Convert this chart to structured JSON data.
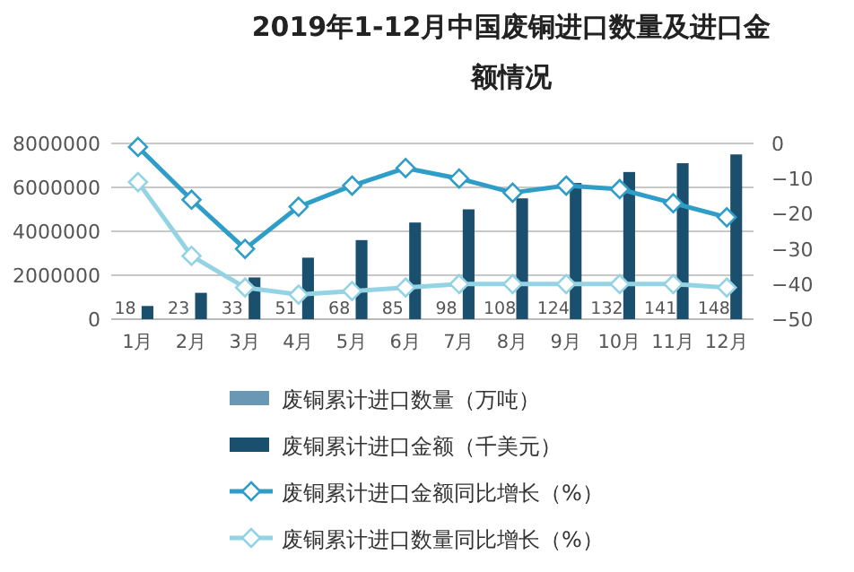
{
  "chart_data": {
    "type": "bar",
    "title": "2019年1-12月中国废铜进口数量及进口金额情况",
    "categories": [
      "1月",
      "2月",
      "3月",
      "4月",
      "5月",
      "6月",
      "7月",
      "8月",
      "9月",
      "10月",
      "11月",
      "12月"
    ],
    "series": [
      {
        "name": "废铜累计进口数量（万吨）",
        "color": "#6a97b3",
        "values": [
          18,
          23,
          33,
          51,
          68,
          85,
          98,
          108,
          124,
          132,
          141,
          148
        ],
        "data_labels": true
      },
      {
        "name": "废铜累计进口金额（千美元）",
        "color": "#1b4f6e",
        "values": [
          600000,
          1200000,
          1900000,
          2800000,
          3600000,
          4400000,
          5000000,
          5500000,
          6200000,
          6700000,
          7100000,
          7500000
        ]
      },
      {
        "name": "废铜累计进口金额同比增长（%）",
        "type": "line",
        "axis": "y2",
        "color": "#2e9dc8",
        "marker": "diamond",
        "values": [
          -1,
          -16,
          -30,
          -18,
          -12,
          -7,
          -10,
          -14,
          -12,
          -13,
          -17,
          -21
        ]
      },
      {
        "name": "废铜累计进口数量同比增长（%）",
        "type": "line",
        "axis": "y2",
        "color": "#93d3e3",
        "marker": "diamond",
        "values": [
          -11,
          -32,
          -41,
          -43,
          -42,
          -41,
          -40,
          -40,
          -40,
          -40,
          -40,
          -41
        ]
      }
    ],
    "ylim": [
      0,
      8000000
    ],
    "yticks": [
      0,
      2000000,
      4000000,
      6000000,
      8000000
    ],
    "y2lim": [
      -50,
      0
    ],
    "y2ticks": [
      -50,
      -40,
      -30,
      -20,
      -10,
      0
    ],
    "grid": "y",
    "legend": "bottom"
  }
}
